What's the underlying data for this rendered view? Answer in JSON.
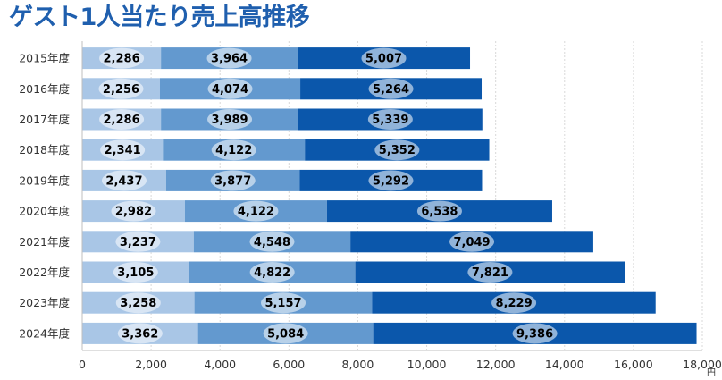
{
  "title": "ゲスト1人当たり売上高推移",
  "chart_data": {
    "type": "bar",
    "orientation": "horizontal",
    "stacked": true,
    "title": "ゲスト1人当たり売上高推移",
    "categories": [
      "2015年度",
      "2016年度",
      "2017年度",
      "2018年度",
      "2019年度",
      "2020年度",
      "2021年度",
      "2022年度",
      "2023年度",
      "2024年度"
    ],
    "series": [
      {
        "values": [
          2286,
          2256,
          2286,
          2341,
          2437,
          2982,
          3237,
          3105,
          3258,
          3362
        ],
        "color": "#a9c6e6"
      },
      {
        "values": [
          3964,
          4074,
          3989,
          4122,
          3877,
          4122,
          4548,
          4822,
          5157,
          5084
        ],
        "color": "#6399cf"
      },
      {
        "values": [
          5007,
          5264,
          5339,
          5352,
          5292,
          6538,
          7049,
          7821,
          8229,
          9386
        ],
        "color": "#0b57ab"
      }
    ],
    "xlim": [
      0,
      18000
    ],
    "xticks": [
      "0",
      "2,000",
      "4,000",
      "6,000",
      "8,000",
      "10,000",
      "12,000",
      "14,000",
      "16,000",
      "18,000"
    ],
    "unit": "円",
    "grid": true,
    "legend": "none"
  }
}
